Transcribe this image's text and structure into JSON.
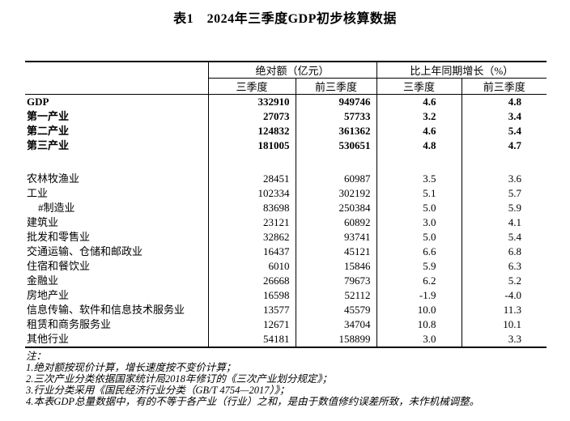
{
  "title": "表1　2024年三季度GDP初步核算数据",
  "table": {
    "col_groups": [
      {
        "label": "绝对额（亿元）"
      },
      {
        "label": "比上年同期增长（%）"
      }
    ],
    "sub_headers": [
      "三季度",
      "前三季度",
      "三季度",
      "前三季度"
    ],
    "rows": [
      {
        "label": "GDP",
        "bold": true,
        "values": [
          "332910",
          "949746",
          "4.6",
          "4.8"
        ]
      },
      {
        "label": "第一产业",
        "bold": true,
        "values": [
          "27073",
          "57733",
          "3.2",
          "3.4"
        ]
      },
      {
        "label": "第二产业",
        "bold": true,
        "values": [
          "124832",
          "361362",
          "4.6",
          "5.4"
        ]
      },
      {
        "label": "第三产业",
        "bold": true,
        "values": [
          "181005",
          "530651",
          "4.8",
          "4.7"
        ]
      },
      {
        "label": "",
        "spacer": true,
        "values": [
          "",
          "",
          "",
          ""
        ]
      },
      {
        "label": "农林牧渔业",
        "values": [
          "28451",
          "60987",
          "3.5",
          "3.6"
        ]
      },
      {
        "label": "工业",
        "values": [
          "102334",
          "302192",
          "5.1",
          "5.7"
        ]
      },
      {
        "label": "#制造业",
        "indent": true,
        "values": [
          "83698",
          "250384",
          "5.0",
          "5.9"
        ]
      },
      {
        "label": "建筑业",
        "values": [
          "23121",
          "60892",
          "3.0",
          "4.1"
        ]
      },
      {
        "label": "批发和零售业",
        "values": [
          "32862",
          "93741",
          "5.0",
          "5.4"
        ]
      },
      {
        "label": "交通运输、仓储和邮政业",
        "values": [
          "16437",
          "45121",
          "6.6",
          "6.8"
        ]
      },
      {
        "label": "住宿和餐饮业",
        "values": [
          "6010",
          "15846",
          "5.9",
          "6.3"
        ]
      },
      {
        "label": "金融业",
        "values": [
          "26668",
          "79673",
          "6.2",
          "5.2"
        ]
      },
      {
        "label": "房地产业",
        "values": [
          "16598",
          "52112",
          "-1.9",
          "-4.0"
        ]
      },
      {
        "label": "信息传输、软件和信息技术服务业",
        "values": [
          "13577",
          "45579",
          "10.0",
          "11.3"
        ]
      },
      {
        "label": "租赁和商务服务业",
        "values": [
          "12671",
          "34704",
          "10.8",
          "10.1"
        ]
      },
      {
        "label": "其他行业",
        "values": [
          "54181",
          "158899",
          "3.0",
          "3.3"
        ]
      }
    ]
  },
  "notes": {
    "heading": "注：",
    "items": [
      "1.绝对额按现价计算，增长速度按不变价计算；",
      "2.三次产业分类依据国家统计局2018年修订的《三次产业划分规定》；",
      "3.行业分类采用《国民经济行业分类（GB/T 4754—2017）》；",
      "4.本表GDP总量数据中，有的不等于各产业（行业）之和，是由于数值修约误差所致，未作机械调整。"
    ]
  }
}
